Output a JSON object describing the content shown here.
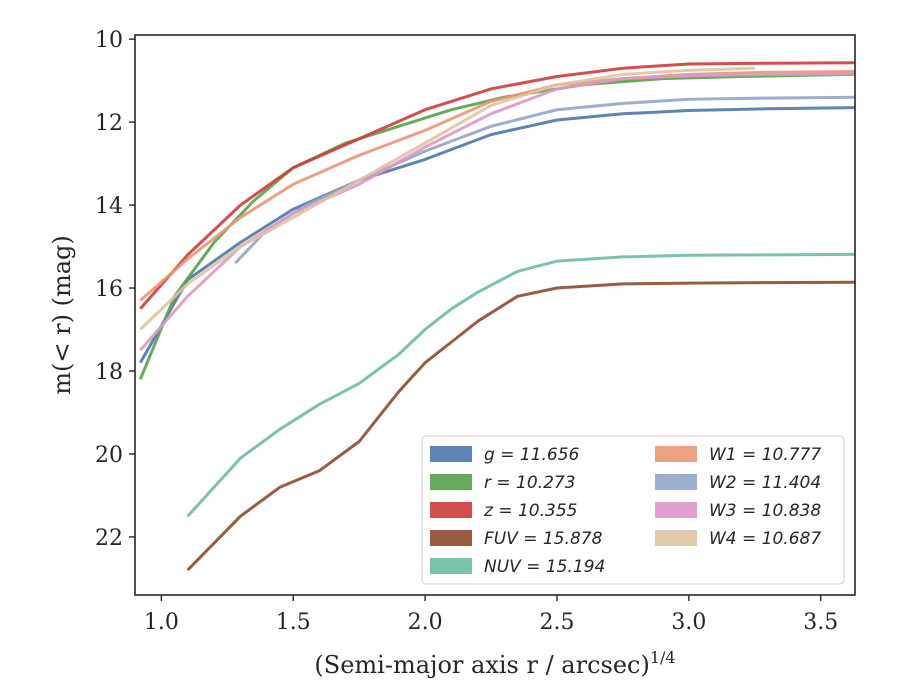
{
  "chart_data": {
    "type": "line",
    "xlabel": "(Semi-major axis r / arcsec)",
    "xlabel_exponent": "1/4",
    "ylabel": "m(< r) (mag)",
    "xlim": [
      0.9,
      3.63
    ],
    "ylim": [
      23.4,
      9.9
    ],
    "y_inverted": true,
    "x_ticks": [
      1.0,
      1.5,
      2.0,
      2.5,
      3.0,
      3.5
    ],
    "x_tick_labels": [
      "1.0",
      "1.5",
      "2.0",
      "2.5",
      "3.0",
      "3.5"
    ],
    "y_ticks": [
      10,
      12,
      14,
      16,
      18,
      20,
      22
    ],
    "y_tick_labels": [
      "10",
      "12",
      "14",
      "16",
      "18",
      "20",
      "22"
    ],
    "grid": false,
    "legend_position": "lower-right",
    "legend_columns": 2,
    "series": [
      {
        "name": "g = 11.656",
        "color": "#4c78a8",
        "x": [
          0.92,
          1.1,
          1.3,
          1.5,
          1.75,
          2.0,
          2.25,
          2.5,
          2.75,
          3.0,
          3.3,
          3.63
        ],
        "y": [
          17.8,
          15.8,
          14.9,
          14.1,
          13.4,
          12.9,
          12.3,
          11.95,
          11.8,
          11.72,
          11.68,
          11.65
        ]
      },
      {
        "name": "r = 10.273",
        "color": "#55a24a",
        "x": [
          0.92,
          1.05,
          1.2,
          1.35,
          1.5,
          1.7,
          1.9,
          2.1,
          2.3,
          2.6,
          2.9,
          3.2,
          3.63
        ],
        "y": [
          18.2,
          16.2,
          14.9,
          13.9,
          13.1,
          12.5,
          12.1,
          11.7,
          11.4,
          11.1,
          10.95,
          10.9,
          10.85
        ]
      },
      {
        "name": "z = 10.355",
        "color": "#d03b3b",
        "x": [
          0.92,
          1.1,
          1.3,
          1.5,
          1.75,
          2.0,
          2.25,
          2.5,
          2.75,
          3.0,
          3.3,
          3.63
        ],
        "y": [
          16.5,
          15.2,
          14.0,
          13.1,
          12.4,
          11.7,
          11.2,
          10.9,
          10.7,
          10.6,
          10.58,
          10.57
        ]
      },
      {
        "name": "FUV = 15.878",
        "color": "#8e4a2c",
        "x": [
          1.1,
          1.3,
          1.45,
          1.6,
          1.75,
          1.9,
          2.0,
          2.1,
          2.2,
          2.35,
          2.5,
          2.75,
          3.0,
          3.3,
          3.63
        ],
        "y": [
          22.8,
          21.5,
          20.8,
          20.4,
          19.7,
          18.5,
          17.8,
          17.3,
          16.8,
          16.2,
          16.0,
          15.9,
          15.88,
          15.87,
          15.86
        ]
      },
      {
        "name": "NUV = 15.194",
        "color": "#6dbba0",
        "x": [
          1.1,
          1.3,
          1.45,
          1.6,
          1.75,
          1.9,
          2.0,
          2.1,
          2.2,
          2.35,
          2.5,
          2.75,
          3.0,
          3.3,
          3.63
        ],
        "y": [
          21.5,
          20.1,
          19.4,
          18.8,
          18.3,
          17.6,
          17.0,
          16.5,
          16.1,
          15.6,
          15.35,
          15.25,
          15.21,
          15.2,
          15.19
        ]
      },
      {
        "name": "W1 = 10.777",
        "color": "#eb9573",
        "x": [
          0.92,
          1.1,
          1.3,
          1.5,
          1.75,
          2.0,
          2.25,
          2.5,
          2.75,
          3.0,
          3.3,
          3.63
        ],
        "y": [
          16.3,
          15.3,
          14.3,
          13.5,
          12.8,
          12.2,
          11.5,
          11.1,
          10.95,
          10.85,
          10.8,
          10.78
        ]
      },
      {
        "name": "W2 = 11.404",
        "color": "#94a3c8",
        "x": [
          1.28,
          1.4,
          1.55,
          1.75,
          2.0,
          2.25,
          2.5,
          2.75,
          3.0,
          3.3,
          3.63
        ],
        "y": [
          15.4,
          14.6,
          14.0,
          13.4,
          12.7,
          12.1,
          11.7,
          11.55,
          11.45,
          11.42,
          11.4
        ]
      },
      {
        "name": "W3 = 10.838",
        "color": "#dd98c8",
        "x": [
          0.92,
          1.1,
          1.3,
          1.5,
          1.75,
          2.0,
          2.25,
          2.5,
          2.75,
          3.0,
          3.3,
          3.63
        ],
        "y": [
          17.5,
          16.2,
          15.0,
          14.2,
          13.5,
          12.6,
          11.8,
          11.2,
          10.95,
          10.88,
          10.85,
          10.84
        ]
      },
      {
        "name": "W4 = 10.687",
        "color": "#dfc3a0",
        "x": [
          0.92,
          1.1,
          1.3,
          1.5,
          1.75,
          2.0,
          2.25,
          2.5,
          2.75,
          3.0,
          3.25
        ],
        "y": [
          17.0,
          15.9,
          15.0,
          14.3,
          13.4,
          12.5,
          11.6,
          11.1,
          10.85,
          10.75,
          10.7
        ]
      }
    ]
  }
}
